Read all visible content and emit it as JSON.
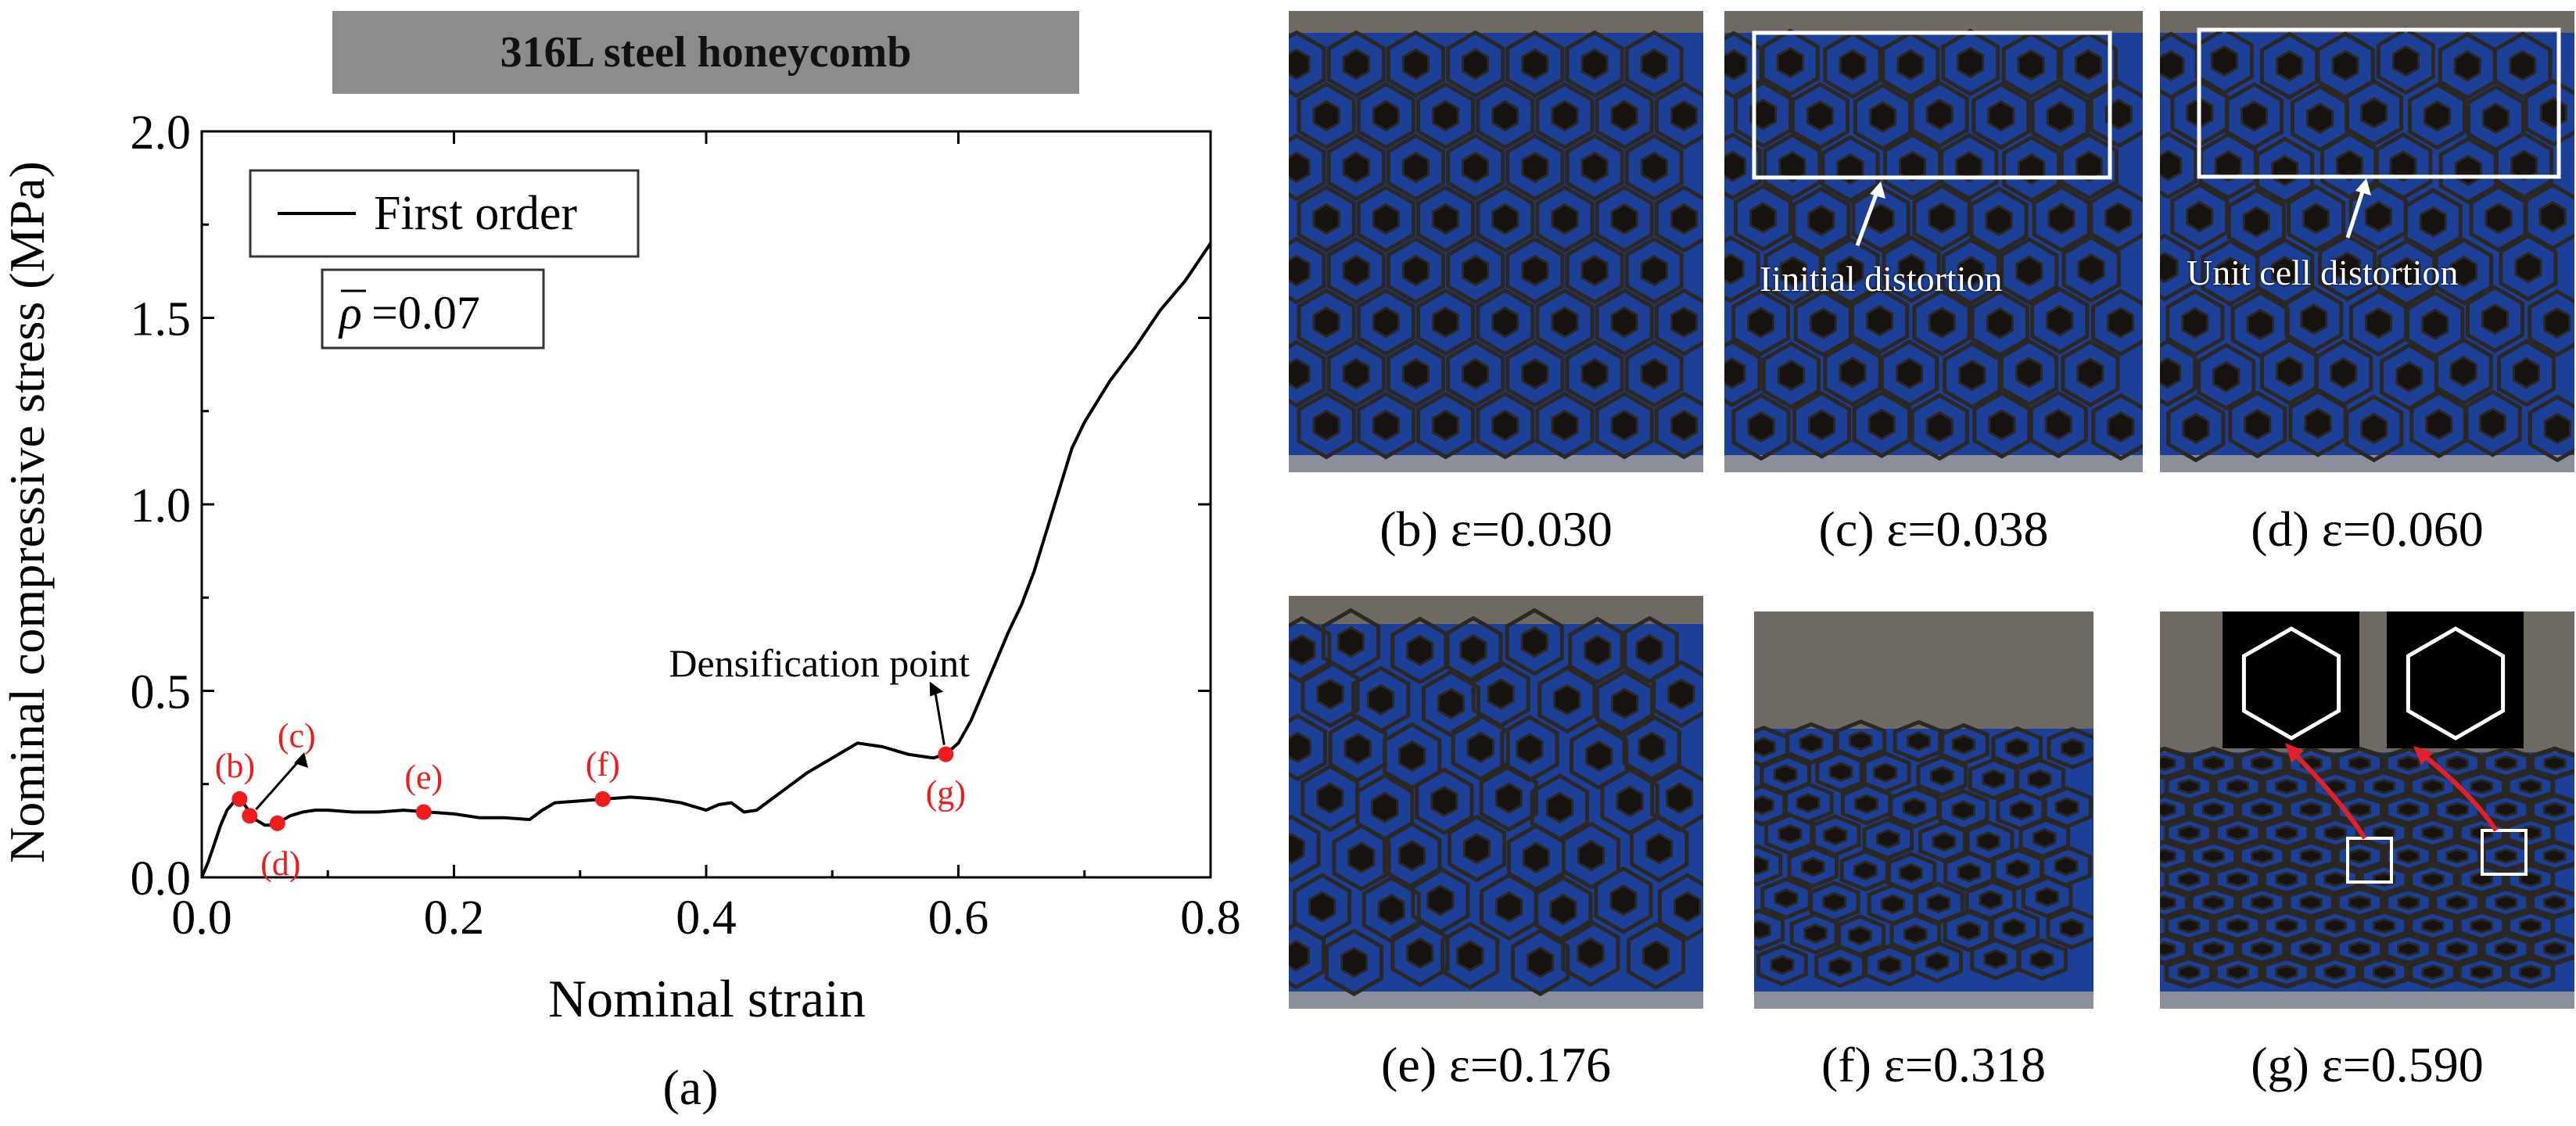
{
  "panel_a": {
    "banner": "316L steel honeycomb",
    "caption": "(a)",
    "density_label": "=0.07",
    "density_symbol": "ρ"
  },
  "chart_data": {
    "type": "line",
    "xlabel": "Nominal strain",
    "ylabel": "Nominal compressive stress (MPa)",
    "xlim": [
      0.0,
      0.8
    ],
    "ylim": [
      0.0,
      2.0
    ],
    "x_ticks": [
      "0.0",
      "0.2",
      "0.4",
      "0.6",
      "0.8"
    ],
    "y_ticks": [
      "0.0",
      "0.5",
      "1.0",
      "1.5",
      "2.0"
    ],
    "legend_position": "top-left",
    "grid": false,
    "series": [
      {
        "name": "First order",
        "color": "#000000",
        "x": [
          0.0,
          0.005,
          0.01,
          0.015,
          0.02,
          0.025,
          0.03,
          0.035,
          0.04,
          0.045,
          0.05,
          0.055,
          0.06,
          0.07,
          0.08,
          0.09,
          0.1,
          0.12,
          0.14,
          0.16,
          0.18,
          0.2,
          0.22,
          0.24,
          0.26,
          0.27,
          0.28,
          0.3,
          0.32,
          0.34,
          0.36,
          0.38,
          0.4,
          0.41,
          0.42,
          0.43,
          0.44,
          0.46,
          0.48,
          0.5,
          0.52,
          0.54,
          0.56,
          0.58,
          0.59,
          0.6,
          0.61,
          0.62,
          0.63,
          0.64,
          0.65,
          0.66,
          0.67,
          0.68,
          0.69,
          0.7,
          0.72,
          0.74,
          0.76,
          0.78,
          0.8
        ],
        "y": [
          0.0,
          0.04,
          0.09,
          0.14,
          0.18,
          0.2,
          0.21,
          0.19,
          0.16,
          0.15,
          0.14,
          0.14,
          0.145,
          0.165,
          0.175,
          0.18,
          0.18,
          0.175,
          0.175,
          0.18,
          0.175,
          0.17,
          0.16,
          0.16,
          0.155,
          0.18,
          0.2,
          0.205,
          0.21,
          0.215,
          0.21,
          0.2,
          0.18,
          0.195,
          0.2,
          0.175,
          0.18,
          0.23,
          0.28,
          0.32,
          0.36,
          0.35,
          0.33,
          0.32,
          0.33,
          0.36,
          0.42,
          0.5,
          0.58,
          0.66,
          0.73,
          0.82,
          0.93,
          1.04,
          1.15,
          1.22,
          1.33,
          1.42,
          1.52,
          1.6,
          1.7
        ]
      }
    ],
    "markers": [
      {
        "label": "(b)",
        "x": 0.03,
        "y": 0.21
      },
      {
        "label": "(c)",
        "x": 0.038,
        "y": 0.165
      },
      {
        "label": "(d)",
        "x": 0.06,
        "y": 0.145
      },
      {
        "label": "(e)",
        "x": 0.176,
        "y": 0.175
      },
      {
        "label": "(f)",
        "x": 0.318,
        "y": 0.21
      },
      {
        "label": "(g)",
        "x": 0.59,
        "y": 0.33
      }
    ],
    "annotations": [
      {
        "text": "Densification point",
        "x": 0.59,
        "y": 0.33
      }
    ],
    "marker_color": "#ee1c1c"
  },
  "photos": {
    "b": {
      "caption": "(b) ε=0.030"
    },
    "c": {
      "caption": "(c) ε=0.038",
      "note": "Iinitial distortion"
    },
    "d": {
      "caption": "(d) ε=0.060",
      "note": "Unit cell distortion"
    },
    "e": {
      "caption": "(e) ε=0.176"
    },
    "f": {
      "caption": "(f) ε=0.318"
    },
    "g": {
      "caption": "(g) ε=0.590"
    }
  },
  "colors": {
    "photo_background": "#1c3f97",
    "platen": "#6e6a63",
    "lattice": "#2b2723",
    "highlight_box": "#ffffff",
    "arrow_red": "#e0202a"
  }
}
